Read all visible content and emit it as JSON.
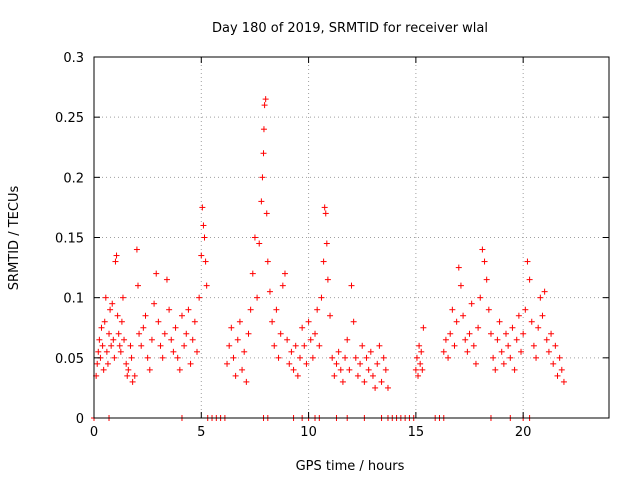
{
  "chart_data": {
    "type": "scatter",
    "title": "Day 180 of 2019, SRMTID for receiver wlal",
    "xlabel": "GPS time / hours",
    "ylabel": "SRMTID / TECUs",
    "xlim": [
      0,
      24
    ],
    "ylim": [
      0,
      0.3
    ],
    "xticks": [
      0,
      5,
      10,
      15,
      20
    ],
    "xtick_labels": [
      "0",
      "5",
      "10",
      "15",
      "20"
    ],
    "yticks": [
      0,
      0.05,
      0.1,
      0.15,
      0.2,
      0.25,
      0.3
    ],
    "ytick_labels": [
      "0",
      "0.05",
      "0.1",
      "0.15",
      "0.2",
      "0.25",
      "0.3"
    ],
    "grid": true,
    "marker": "+",
    "color": "#ff0000",
    "series": [
      {
        "name": "SRMTID",
        "points": [
          [
            0.1,
            0.035
          ],
          [
            0.15,
            0.045
          ],
          [
            0.2,
            0.055
          ],
          [
            0.25,
            0.065
          ],
          [
            0.3,
            0.05
          ],
          [
            0.35,
            0.075
          ],
          [
            0.4,
            0.06
          ],
          [
            0.45,
            0.04
          ],
          [
            0.5,
            0.08
          ],
          [
            0.55,
            0.1
          ],
          [
            0.6,
            0.055
          ],
          [
            0.65,
            0.045
          ],
          [
            0.7,
            0.07
          ],
          [
            0.75,
            0.09
          ],
          [
            0.8,
            0.06
          ],
          [
            0.85,
            0.095
          ],
          [
            0.9,
            0.065
          ],
          [
            0.95,
            0.05
          ],
          [
            1.0,
            0.13
          ],
          [
            1.05,
            0.135
          ],
          [
            1.1,
            0.085
          ],
          [
            1.15,
            0.07
          ],
          [
            1.2,
            0.06
          ],
          [
            1.25,
            0.055
          ],
          [
            1.3,
            0.08
          ],
          [
            1.35,
            0.1
          ],
          [
            1.4,
            0.065
          ],
          [
            1.5,
            0.045
          ],
          [
            1.55,
            0.035
          ],
          [
            1.6,
            0.04
          ],
          [
            1.7,
            0.06
          ],
          [
            1.75,
            0.05
          ],
          [
            1.8,
            0.03
          ],
          [
            1.9,
            0.035
          ],
          [
            2.0,
            0.14
          ],
          [
            2.05,
            0.11
          ],
          [
            2.1,
            0.07
          ],
          [
            2.2,
            0.06
          ],
          [
            2.3,
            0.075
          ],
          [
            2.4,
            0.085
          ],
          [
            2.5,
            0.05
          ],
          [
            2.6,
            0.04
          ],
          [
            2.7,
            0.065
          ],
          [
            2.8,
            0.095
          ],
          [
            2.9,
            0.12
          ],
          [
            3.0,
            0.08
          ],
          [
            3.1,
            0.06
          ],
          [
            3.2,
            0.05
          ],
          [
            3.3,
            0.07
          ],
          [
            3.4,
            0.115
          ],
          [
            3.5,
            0.09
          ],
          [
            3.6,
            0.065
          ],
          [
            3.7,
            0.055
          ],
          [
            3.8,
            0.075
          ],
          [
            3.9,
            0.05
          ],
          [
            4.0,
            0.04
          ],
          [
            4.1,
            0.085
          ],
          [
            4.2,
            0.06
          ],
          [
            4.3,
            0.07
          ],
          [
            4.4,
            0.09
          ],
          [
            4.5,
            0.045
          ],
          [
            4.6,
            0.065
          ],
          [
            4.7,
            0.08
          ],
          [
            4.8,
            0.055
          ],
          [
            4.9,
            0.1
          ],
          [
            5.0,
            0.135
          ],
          [
            5.05,
            0.175
          ],
          [
            5.1,
            0.16
          ],
          [
            5.15,
            0.15
          ],
          [
            5.2,
            0.13
          ],
          [
            5.25,
            0.11
          ],
          [
            6.2,
            0.045
          ],
          [
            6.3,
            0.06
          ],
          [
            6.4,
            0.075
          ],
          [
            6.5,
            0.05
          ],
          [
            6.6,
            0.035
          ],
          [
            6.7,
            0.065
          ],
          [
            6.8,
            0.08
          ],
          [
            6.9,
            0.04
          ],
          [
            7.0,
            0.055
          ],
          [
            7.1,
            0.03
          ],
          [
            7.2,
            0.07
          ],
          [
            7.3,
            0.09
          ],
          [
            7.4,
            0.12
          ],
          [
            7.5,
            0.15
          ],
          [
            7.6,
            0.1
          ],
          [
            7.7,
            0.145
          ],
          [
            7.8,
            0.18
          ],
          [
            7.85,
            0.2
          ],
          [
            7.9,
            0.22
          ],
          [
            7.92,
            0.24
          ],
          [
            7.95,
            0.26
          ],
          [
            8.0,
            0.265
          ],
          [
            8.05,
            0.17
          ],
          [
            8.1,
            0.13
          ],
          [
            8.2,
            0.105
          ],
          [
            8.3,
            0.08
          ],
          [
            8.4,
            0.06
          ],
          [
            8.5,
            0.09
          ],
          [
            8.6,
            0.05
          ],
          [
            8.7,
            0.07
          ],
          [
            8.8,
            0.11
          ],
          [
            8.9,
            0.12
          ],
          [
            9.0,
            0.065
          ],
          [
            9.1,
            0.045
          ],
          [
            9.2,
            0.055
          ],
          [
            9.3,
            0.04
          ],
          [
            9.4,
            0.06
          ],
          [
            9.5,
            0.035
          ],
          [
            9.6,
            0.05
          ],
          [
            9.7,
            0.075
          ],
          [
            9.8,
            0.06
          ],
          [
            9.9,
            0.045
          ],
          [
            10.0,
            0.08
          ],
          [
            10.1,
            0.065
          ],
          [
            10.2,
            0.05
          ],
          [
            10.3,
            0.07
          ],
          [
            10.4,
            0.09
          ],
          [
            10.5,
            0.06
          ],
          [
            10.6,
            0.1
          ],
          [
            10.7,
            0.13
          ],
          [
            10.75,
            0.175
          ],
          [
            10.8,
            0.17
          ],
          [
            10.85,
            0.145
          ],
          [
            10.9,
            0.115
          ],
          [
            11.0,
            0.085
          ],
          [
            11.1,
            0.05
          ],
          [
            11.2,
            0.035
          ],
          [
            11.3,
            0.045
          ],
          [
            11.4,
            0.055
          ],
          [
            11.5,
            0.04
          ],
          [
            11.6,
            0.03
          ],
          [
            11.7,
            0.05
          ],
          [
            11.8,
            0.065
          ],
          [
            11.9,
            0.04
          ],
          [
            12.0,
            0.11
          ],
          [
            12.1,
            0.08
          ],
          [
            12.2,
            0.05
          ],
          [
            12.3,
            0.035
          ],
          [
            12.4,
            0.045
          ],
          [
            12.5,
            0.06
          ],
          [
            12.6,
            0.03
          ],
          [
            12.7,
            0.05
          ],
          [
            12.8,
            0.04
          ],
          [
            12.9,
            0.055
          ],
          [
            13.0,
            0.035
          ],
          [
            13.1,
            0.025
          ],
          [
            13.2,
            0.045
          ],
          [
            13.3,
            0.06
          ],
          [
            13.4,
            0.03
          ],
          [
            13.5,
            0.05
          ],
          [
            13.6,
            0.04
          ],
          [
            13.7,
            0.025
          ],
          [
            15.0,
            0.04
          ],
          [
            15.05,
            0.05
          ],
          [
            15.1,
            0.035
          ],
          [
            15.15,
            0.06
          ],
          [
            15.2,
            0.045
          ],
          [
            15.25,
            0.055
          ],
          [
            15.3,
            0.04
          ],
          [
            15.35,
            0.075
          ],
          [
            16.3,
            0.055
          ],
          [
            16.4,
            0.065
          ],
          [
            16.5,
            0.05
          ],
          [
            16.6,
            0.07
          ],
          [
            16.7,
            0.09
          ],
          [
            16.8,
            0.06
          ],
          [
            16.9,
            0.08
          ],
          [
            17.0,
            0.125
          ],
          [
            17.1,
            0.11
          ],
          [
            17.2,
            0.085
          ],
          [
            17.3,
            0.065
          ],
          [
            17.4,
            0.055
          ],
          [
            17.5,
            0.07
          ],
          [
            17.6,
            0.095
          ],
          [
            17.7,
            0.06
          ],
          [
            17.8,
            0.045
          ],
          [
            17.9,
            0.075
          ],
          [
            18.0,
            0.1
          ],
          [
            18.1,
            0.14
          ],
          [
            18.2,
            0.13
          ],
          [
            18.3,
            0.115
          ],
          [
            18.4,
            0.09
          ],
          [
            18.5,
            0.07
          ],
          [
            18.6,
            0.05
          ],
          [
            18.7,
            0.04
          ],
          [
            18.8,
            0.065
          ],
          [
            18.9,
            0.08
          ],
          [
            19.0,
            0.055
          ],
          [
            19.1,
            0.045
          ],
          [
            19.2,
            0.07
          ],
          [
            19.3,
            0.06
          ],
          [
            19.4,
            0.05
          ],
          [
            19.5,
            0.075
          ],
          [
            19.6,
            0.04
          ],
          [
            19.7,
            0.065
          ],
          [
            19.8,
            0.085
          ],
          [
            19.9,
            0.055
          ],
          [
            20.0,
            0.07
          ],
          [
            20.1,
            0.09
          ],
          [
            20.2,
            0.13
          ],
          [
            20.3,
            0.115
          ],
          [
            20.4,
            0.08
          ],
          [
            20.5,
            0.06
          ],
          [
            20.6,
            0.05
          ],
          [
            20.7,
            0.075
          ],
          [
            20.8,
            0.1
          ],
          [
            20.9,
            0.085
          ],
          [
            21.0,
            0.105
          ],
          [
            21.1,
            0.065
          ],
          [
            21.2,
            0.055
          ],
          [
            21.3,
            0.07
          ],
          [
            21.4,
            0.045
          ],
          [
            21.5,
            0.06
          ],
          [
            21.6,
            0.035
          ],
          [
            21.7,
            0.05
          ],
          [
            21.8,
            0.04
          ],
          [
            21.9,
            0.03
          ]
        ],
        "zero_x": [
          0.0,
          0.7,
          4.1,
          5.3,
          5.5,
          5.7,
          5.9,
          6.1,
          7.9,
          8.1,
          9.3,
          9.7,
          10.0,
          10.3,
          10.5,
          11.3,
          11.8,
          12.6,
          13.4,
          13.7,
          13.9,
          14.1,
          14.3,
          14.5,
          14.7,
          14.9,
          15.9,
          16.1,
          16.3,
          18.5,
          19.4,
          20.0,
          20.3
        ]
      }
    ]
  }
}
